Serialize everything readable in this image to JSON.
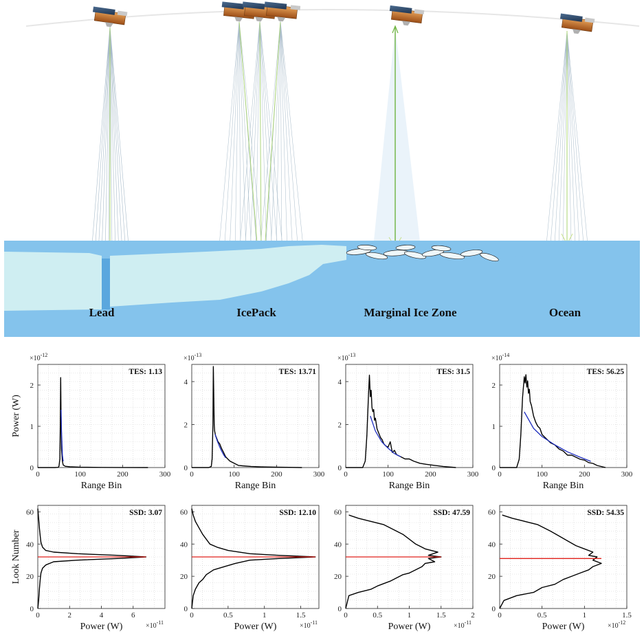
{
  "scene": {
    "labels": [
      "Lead",
      "IcePack",
      "Marginal Ice Zone",
      "Ocean"
    ]
  },
  "chart_data": [
    {
      "type": "line",
      "row": "waveform",
      "stat_label": "TES: 1.13",
      "xlabel": "Range Bin",
      "ylabel": "Power (W)",
      "exponent": "×10",
      "exponent_power": "-12",
      "xlim": [
        0,
        300
      ],
      "ylim": [
        0,
        2.5
      ],
      "xticks": [
        0,
        100,
        200,
        300
      ],
      "yticks": [
        0,
        1,
        2
      ],
      "series": [
        {
          "color": "#000000",
          "x": [
            0,
            40,
            48,
            50,
            52,
            53,
            54,
            55,
            56,
            58,
            60,
            65,
            75,
            100,
            150,
            200,
            260
          ],
          "y": [
            0,
            0,
            0.005,
            0.03,
            0.2,
            1.0,
            2.18,
            1.1,
            0.45,
            0.15,
            0.06,
            0.03,
            0.02,
            0.01,
            0.004,
            0.002,
            0
          ]
        },
        {
          "color": "#1f2fbf",
          "x": [
            55,
            56,
            57,
            58,
            60
          ],
          "y": [
            1.4,
            0.9,
            0.55,
            0.3,
            0.15
          ]
        }
      ]
    },
    {
      "type": "line",
      "row": "waveform",
      "stat_label": "TES: 13.71",
      "xlabel": "Range Bin",
      "ylabel": "",
      "exponent": "×10",
      "exponent_power": "-13",
      "xlim": [
        0,
        300
      ],
      "ylim": [
        0,
        4.8
      ],
      "xticks": [
        0,
        100,
        200,
        300
      ],
      "yticks": [
        0,
        2,
        4
      ],
      "series": [
        {
          "color": "#000000",
          "x": [
            0,
            40,
            46,
            48,
            50,
            51,
            52,
            53,
            54,
            56,
            58,
            62,
            66,
            70,
            75,
            80,
            85,
            90,
            100,
            110,
            120,
            140,
            170,
            200,
            260
          ],
          "y": [
            0,
            0,
            0.05,
            0.4,
            2.0,
            4.7,
            3.2,
            2.0,
            1.7,
            1.5,
            1.4,
            1.2,
            1.1,
            0.9,
            0.7,
            0.5,
            0.4,
            0.3,
            0.2,
            0.1,
            0.08,
            0.05,
            0.03,
            0.02,
            0
          ]
        },
        {
          "color": "#1f2fbf",
          "x": [
            55,
            60,
            65,
            70,
            75,
            80
          ],
          "y": [
            1.55,
            1.25,
            1.0,
            0.78,
            0.6,
            0.45
          ]
        }
      ]
    },
    {
      "type": "line",
      "row": "waveform",
      "stat_label": "TES: 31.5",
      "xlabel": "Range Bin",
      "ylabel": "",
      "exponent": "×10",
      "exponent_power": "-13",
      "xlim": [
        0,
        300
      ],
      "ylim": [
        0,
        4.8
      ],
      "xticks": [
        0,
        100,
        200,
        300
      ],
      "yticks": [
        0,
        2,
        4
      ],
      "series": [
        {
          "color": "#000000",
          "x": [
            0,
            40,
            46,
            50,
            54,
            56,
            58,
            60,
            62,
            64,
            66,
            68,
            70,
            74,
            78,
            82,
            86,
            90,
            95,
            100,
            105,
            110,
            115,
            120,
            130,
            140,
            150,
            160,
            175,
            190,
            210,
            230,
            260
          ],
          "y": [
            0,
            0,
            0.3,
            1.5,
            3.5,
            4.3,
            3.3,
            3.6,
            2.8,
            2.6,
            2.7,
            2.2,
            2.3,
            1.8,
            1.6,
            1.4,
            1.3,
            1.1,
            1.0,
            0.95,
            1.2,
            0.7,
            0.8,
            0.6,
            0.5,
            0.4,
            0.4,
            0.3,
            0.2,
            0.15,
            0.1,
            0.05,
            0
          ]
        },
        {
          "color": "#1f2fbf",
          "x": [
            58,
            70,
            85,
            100,
            115,
            130
          ],
          "y": [
            2.4,
            1.7,
            1.2,
            0.9,
            0.65,
            0.5
          ]
        }
      ]
    },
    {
      "type": "line",
      "row": "waveform",
      "stat_label": "TES: 56.25",
      "xlabel": "Range Bin",
      "ylabel": "",
      "exponent": "×10",
      "exponent_power": "-14",
      "xlim": [
        0,
        300
      ],
      "ylim": [
        0,
        2.5
      ],
      "xticks": [
        0,
        100,
        200,
        300
      ],
      "yticks": [
        0,
        1,
        2
      ],
      "series": [
        {
          "color": "#000000",
          "x": [
            0,
            40,
            46,
            50,
            54,
            58,
            60,
            62,
            64,
            66,
            68,
            70,
            72,
            75,
            80,
            85,
            90,
            95,
            100,
            110,
            120,
            130,
            140,
            150,
            160,
            170,
            180,
            190,
            200,
            210,
            220,
            230,
            250
          ],
          "y": [
            0,
            0,
            0.2,
            0.8,
            1.7,
            2.2,
            2.05,
            2.25,
            1.95,
            2.1,
            1.8,
            1.9,
            1.6,
            1.5,
            1.25,
            1.1,
            1.0,
            0.95,
            0.8,
            0.7,
            0.6,
            0.55,
            0.45,
            0.4,
            0.3,
            0.3,
            0.25,
            0.2,
            0.18,
            0.12,
            0.1,
            0.05,
            0
          ]
        },
        {
          "color": "#1f2fbf",
          "x": [
            58,
            80,
            100,
            130,
            160,
            190,
            215
          ],
          "y": [
            1.35,
            0.95,
            0.75,
            0.55,
            0.38,
            0.25,
            0.15
          ]
        }
      ]
    },
    {
      "type": "line",
      "row": "stack",
      "stat_label": "SSD: 3.07",
      "xlabel": "Power (W)",
      "ylabel": "Look Number",
      "exponent": "×10",
      "exponent_power": "-11",
      "xlim": [
        0,
        8
      ],
      "ylim": [
        0,
        64
      ],
      "xticks": [
        0,
        2,
        4,
        6
      ],
      "yticks": [
        0,
        20,
        40,
        60
      ],
      "series": [
        {
          "color": "#000000",
          "x": [
            0,
            0.05,
            0.1,
            0.15,
            0.2,
            0.3,
            0.5,
            1.0,
            2.5,
            5.0,
            6.8,
            5.0,
            2.5,
            1.0,
            0.5,
            0.3,
            0.2,
            0.15,
            0.1,
            0.05,
            0
          ],
          "y": [
            0,
            5,
            12,
            18,
            22,
            25,
            27,
            29,
            30,
            31,
            32,
            33,
            34,
            35,
            36,
            38,
            41,
            45,
            50,
            56,
            62
          ]
        },
        {
          "color": "#e0201a",
          "x": [
            0,
            6.8
          ],
          "y": [
            32,
            32
          ]
        }
      ]
    },
    {
      "type": "line",
      "row": "stack",
      "stat_label": "SSD: 12.10",
      "xlabel": "Power (W)",
      "ylabel": "",
      "exponent": "×10",
      "exponent_power": "-11",
      "xlim": [
        0,
        1.75
      ],
      "ylim": [
        0,
        64
      ],
      "xticks": [
        0,
        0.5,
        1,
        1.5
      ],
      "yticks": [
        0,
        20,
        40,
        60
      ],
      "series": [
        {
          "color": "#000000",
          "x": [
            0,
            0.02,
            0.05,
            0.1,
            0.15,
            0.2,
            0.3,
            0.45,
            0.6,
            0.8,
            1.2,
            1.7,
            1.2,
            0.8,
            0.5,
            0.35,
            0.25,
            0.2,
            0.15,
            0.1,
            0.05,
            0.02,
            0
          ],
          "y": [
            0,
            8,
            12,
            16,
            18,
            21,
            24,
            26,
            28,
            30,
            31,
            32,
            33,
            34,
            36,
            38,
            40,
            43,
            46,
            50,
            54,
            58,
            62
          ]
        },
        {
          "color": "#e0201a",
          "x": [
            0,
            1.7
          ],
          "y": [
            32,
            32
          ]
        }
      ]
    },
    {
      "type": "line",
      "row": "stack",
      "stat_label": "SSD: 47.59",
      "xlabel": "Power (W)",
      "ylabel": "",
      "exponent": "×10",
      "exponent_power": "-11",
      "xlim": [
        0,
        2
      ],
      "ylim": [
        0,
        64
      ],
      "xticks": [
        0,
        0.5,
        1,
        1.5,
        2
      ],
      "yticks": [
        0,
        20,
        40,
        60
      ],
      "series": [
        {
          "color": "#000000",
          "x": [
            0,
            0.05,
            0.2,
            0.4,
            0.5,
            0.7,
            0.8,
            0.9,
            1.0,
            1.1,
            1.2,
            1.25,
            1.4,
            1.3,
            1.5,
            1.3,
            1.45,
            1.25,
            1.2,
            1.1,
            1.0,
            0.9,
            0.8,
            0.6,
            0.4,
            0.2,
            0.05
          ],
          "y": [
            0,
            8,
            10,
            12,
            14,
            17,
            19,
            21,
            22,
            24,
            26,
            28,
            29,
            31,
            32,
            33,
            35,
            37,
            38,
            40,
            43,
            46,
            48,
            52,
            54,
            56,
            58
          ]
        },
        {
          "color": "#e0201a",
          "x": [
            0,
            1.5
          ],
          "y": [
            32,
            32
          ]
        }
      ]
    },
    {
      "type": "line",
      "row": "stack",
      "stat_label": "SSD: 54.35",
      "xlabel": "Power (W)",
      "ylabel": "",
      "exponent": "×10",
      "exponent_power": "-12",
      "xlim": [
        0,
        1.5
      ],
      "ylim": [
        0,
        64
      ],
      "xticks": [
        0,
        0.5,
        1,
        1.5
      ],
      "yticks": [
        0,
        20,
        40,
        60
      ],
      "series": [
        {
          "color": "#000000",
          "x": [
            0,
            0.05,
            0.2,
            0.4,
            0.5,
            0.65,
            0.75,
            0.85,
            0.95,
            1.05,
            1.1,
            1.2,
            1.1,
            1.15,
            1.05,
            1.1,
            1.0,
            0.9,
            0.8,
            0.7,
            0.6,
            0.45,
            0.3,
            0.15,
            0.03
          ],
          "y": [
            0,
            5,
            8,
            10,
            13,
            15,
            18,
            20,
            22,
            24,
            26,
            28,
            30,
            32,
            33,
            35,
            37,
            39,
            42,
            45,
            48,
            52,
            54,
            56,
            58
          ]
        },
        {
          "color": "#e0201a",
          "x": [
            0,
            1.2
          ],
          "y": [
            31,
            31
          ]
        }
      ]
    }
  ]
}
